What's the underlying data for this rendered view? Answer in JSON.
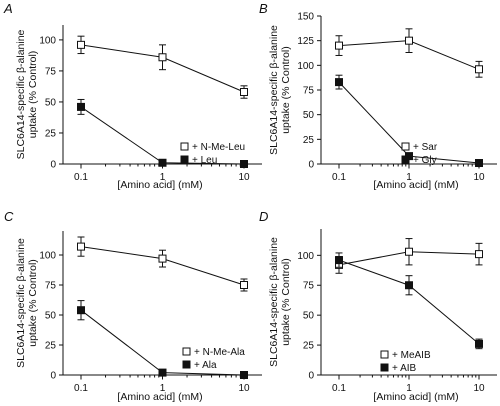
{
  "chart_data": [
    {
      "type": "line",
      "panel_label": "A",
      "xlabel": "[Amino acid] (mM)",
      "ylabel": [
        "SLC6A14-specific β-alanine",
        "uptake (% Control)"
      ],
      "x_scale": "log",
      "x_ticks": [
        "0.1",
        "1",
        "10"
      ],
      "y_ticks": [
        "0",
        "25",
        "50",
        "75",
        "100"
      ],
      "ylim": [
        0,
        112
      ],
      "xlim": [
        0.1,
        10
      ],
      "legend_position": "right-middle",
      "series": [
        {
          "name": "+ N-Me-Leu",
          "marker": "open-square",
          "x": [
            0.1,
            1,
            10
          ],
          "y": [
            96,
            86,
            58
          ],
          "err": [
            7,
            10,
            5
          ]
        },
        {
          "name": "+ Leu",
          "marker": "filled-square",
          "x": [
            0.1,
            1,
            10
          ],
          "y": [
            46,
            1,
            0
          ],
          "err": [
            6,
            1,
            1
          ]
        }
      ]
    },
    {
      "type": "line",
      "panel_label": "B",
      "xlabel": "[Amino acid] (mM)",
      "ylabel": [
        "SLC6A14-specific β-alanine",
        "uptake (% Control)"
      ],
      "x_scale": "log",
      "x_ticks": [
        "0.1",
        "1",
        "10"
      ],
      "y_ticks": [
        "0",
        "25",
        "50",
        "75",
        "100",
        "125",
        "150"
      ],
      "ylim": [
        0,
        150
      ],
      "xlim": [
        0.1,
        10
      ],
      "legend_position": "right-middle",
      "series": [
        {
          "name": "+ Sar",
          "marker": "open-square",
          "x": [
            0.1,
            1,
            10
          ],
          "y": [
            120,
            125,
            96
          ],
          "err": [
            10,
            12,
            8
          ]
        },
        {
          "name": "+ Gly",
          "marker": "filled-square",
          "x": [
            0.1,
            1,
            10
          ],
          "y": [
            83,
            8,
            1
          ],
          "err": [
            7,
            2,
            1
          ]
        }
      ]
    },
    {
      "type": "line",
      "panel_label": "C",
      "xlabel": "[Amino acid] (mM)",
      "ylabel": [
        "SLC6A14-specific β-alanine",
        "uptake (% Control)"
      ],
      "x_scale": "log",
      "x_ticks": [
        "0.1",
        "1",
        "10"
      ],
      "y_ticks": [
        "0",
        "25",
        "50",
        "75",
        "100"
      ],
      "ylim": [
        0,
        120
      ],
      "xlim": [
        0.1,
        10
      ],
      "legend_position": "right-middle",
      "series": [
        {
          "name": "+ N-Me-Ala",
          "marker": "open-square",
          "x": [
            0.1,
            1,
            10
          ],
          "y": [
            107,
            97,
            75
          ],
          "err": [
            8,
            7,
            5
          ]
        },
        {
          "name": "+ Ala",
          "marker": "filled-square",
          "x": [
            0.1,
            1,
            10
          ],
          "y": [
            54,
            2,
            0
          ],
          "err": [
            8,
            1,
            1
          ]
        }
      ]
    },
    {
      "type": "line",
      "panel_label": "D",
      "xlabel": "[Amino acid] (mM)",
      "ylabel": [
        "SLC6A14-specific β-alanine",
        "uptake (% Control)"
      ],
      "x_scale": "log",
      "x_ticks": [
        "0.1",
        "1",
        "10"
      ],
      "y_ticks": [
        "0",
        "25",
        "50",
        "75",
        "100"
      ],
      "ylim": [
        0,
        122
      ],
      "xlim": [
        0.1,
        10
      ],
      "legend_position": "bottom-right",
      "series": [
        {
          "name": "+ MeAIB",
          "marker": "open-square",
          "x": [
            0.1,
            1,
            10
          ],
          "y": [
            92,
            103,
            101
          ],
          "err": [
            7,
            11,
            9
          ]
        },
        {
          "name": "+ AIB",
          "marker": "filled-square",
          "x": [
            0.1,
            1,
            10
          ],
          "y": [
            96,
            75,
            26
          ],
          "err": [
            6,
            8,
            4
          ]
        }
      ]
    }
  ]
}
